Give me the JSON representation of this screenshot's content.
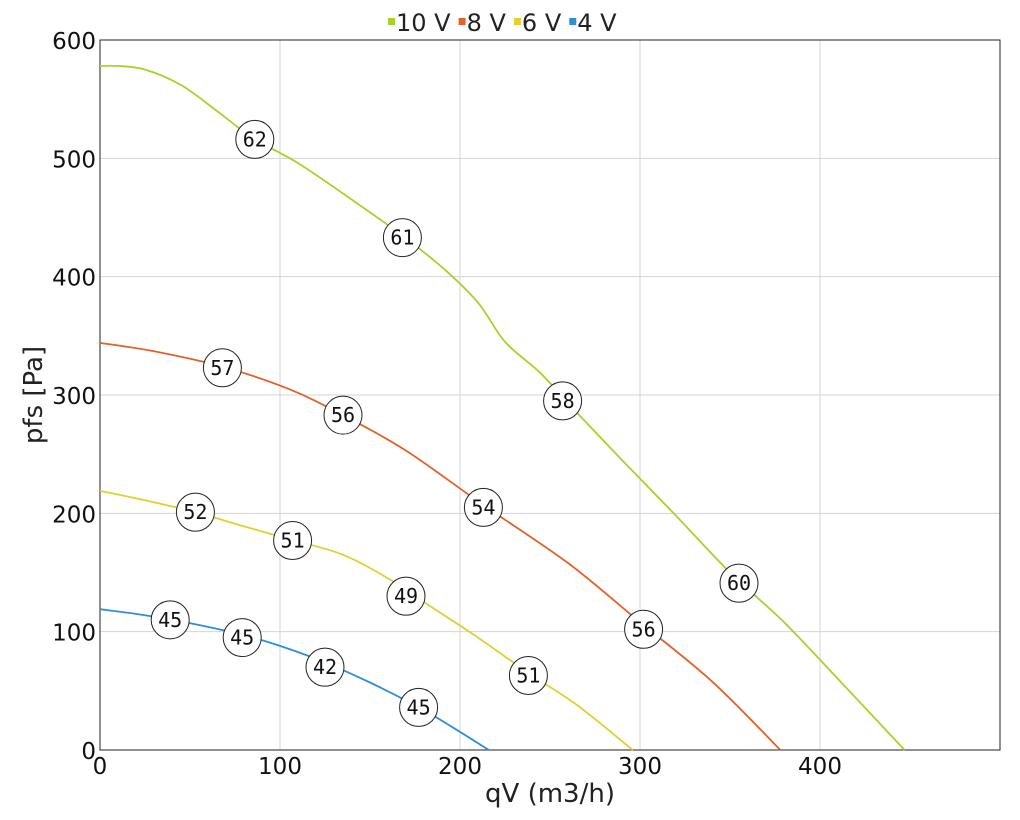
{
  "chart_data": {
    "type": "line",
    "xlabel": "qV (m3/h)",
    "ylabel": "pfs [Pa]",
    "xlim": [
      0,
      500
    ],
    "ylim": [
      0,
      600
    ],
    "x_ticks": [
      "0",
      "100",
      "200",
      "300",
      "400"
    ],
    "y_ticks": [
      "0",
      "100",
      "200",
      "300",
      "400",
      "500",
      "600"
    ],
    "grid": true,
    "legend_position": "top-center",
    "series": [
      {
        "name": "10 V",
        "color": "#a8d22a",
        "points": [
          [
            0,
            578
          ],
          [
            10,
            578
          ],
          [
            25,
            575
          ],
          [
            45,
            562
          ],
          [
            65,
            540
          ],
          [
            85,
            517
          ],
          [
            110,
            496
          ],
          [
            140,
            465
          ],
          [
            165,
            438
          ],
          [
            190,
            408
          ],
          [
            210,
            378
          ],
          [
            225,
            345
          ],
          [
            245,
            318
          ],
          [
            265,
            285
          ],
          [
            290,
            245
          ],
          [
            320,
            198
          ],
          [
            350,
            150
          ],
          [
            380,
            108
          ],
          [
            410,
            60
          ],
          [
            447,
            0
          ]
        ],
        "markers": [
          {
            "x": 86,
            "y": 516,
            "label": "62"
          },
          {
            "x": 168,
            "y": 433,
            "label": "61"
          },
          {
            "x": 257,
            "y": 295,
            "label": "58"
          },
          {
            "x": 355,
            "y": 141,
            "label": "60"
          }
        ]
      },
      {
        "name": "8 V",
        "color": "#e2622a",
        "points": [
          [
            0,
            344
          ],
          [
            30,
            337
          ],
          [
            68,
            324
          ],
          [
            105,
            305
          ],
          [
            135,
            283
          ],
          [
            170,
            253
          ],
          [
            212,
            208
          ],
          [
            260,
            158
          ],
          [
            300,
            108
          ],
          [
            340,
            58
          ],
          [
            378,
            0
          ]
        ],
        "markers": [
          {
            "x": 68,
            "y": 323,
            "label": "57"
          },
          {
            "x": 135,
            "y": 283,
            "label": "56"
          },
          {
            "x": 213,
            "y": 205,
            "label": "54"
          },
          {
            "x": 302,
            "y": 102,
            "label": "56"
          }
        ]
      },
      {
        "name": "6 V",
        "color": "#e0d030",
        "points": [
          [
            0,
            219
          ],
          [
            25,
            211
          ],
          [
            53,
            201
          ],
          [
            80,
            189
          ],
          [
            108,
            177
          ],
          [
            135,
            165
          ],
          [
            160,
            145
          ],
          [
            185,
            120
          ],
          [
            210,
            95
          ],
          [
            238,
            65
          ],
          [
            265,
            38
          ],
          [
            296,
            0
          ]
        ],
        "markers": [
          {
            "x": 53,
            "y": 201,
            "label": "52"
          },
          {
            "x": 107,
            "y": 177,
            "label": "51"
          },
          {
            "x": 170,
            "y": 130,
            "label": "49"
          },
          {
            "x": 238,
            "y": 63,
            "label": "51"
          }
        ]
      },
      {
        "name": "4 V",
        "color": "#2d8fd8",
        "points": [
          [
            0,
            119
          ],
          [
            20,
            115
          ],
          [
            40,
            110
          ],
          [
            60,
            104
          ],
          [
            80,
            97
          ],
          [
            100,
            88
          ],
          [
            125,
            74
          ],
          [
            150,
            57
          ],
          [
            176,
            37
          ],
          [
            195,
            20
          ],
          [
            216,
            0
          ]
        ],
        "markers": [
          {
            "x": 39,
            "y": 110,
            "label": "45"
          },
          {
            "x": 79,
            "y": 95,
            "label": "45"
          },
          {
            "x": 125,
            "y": 70,
            "label": "42"
          },
          {
            "x": 177,
            "y": 36,
            "label": "45"
          }
        ]
      }
    ]
  }
}
